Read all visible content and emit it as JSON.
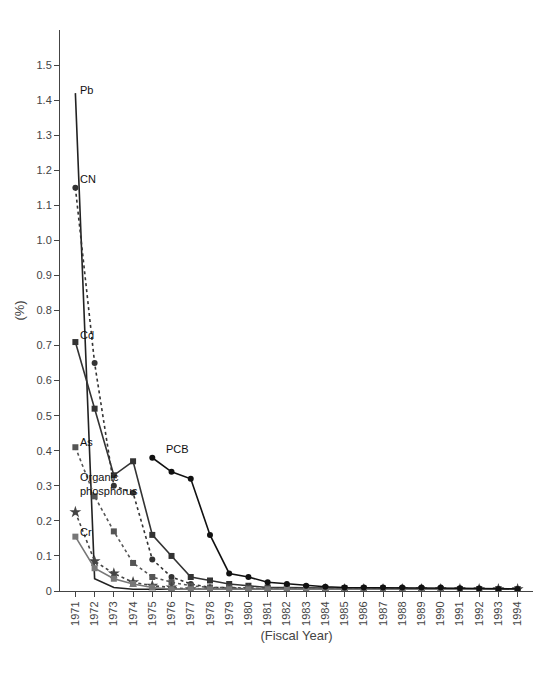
{
  "chart_data": {
    "type": "line",
    "x": [
      1971,
      1972,
      1973,
      1974,
      1975,
      1976,
      1977,
      1978,
      1979,
      1980,
      1981,
      1982,
      1983,
      1984,
      1985,
      1986,
      1987,
      1988,
      1989,
      1990,
      1991,
      1992,
      1993,
      1994
    ],
    "series": [
      {
        "name": "Pb",
        "color": "#222222",
        "line_style": "solid",
        "marker": "none",
        "values": [
          1.42,
          0.035,
          0.01,
          0.005,
          0.005,
          0.005,
          0.005,
          0.005,
          0.005,
          0.005,
          0.005,
          0.005,
          0.005,
          0.005,
          0.005,
          0.005,
          0.005,
          0.005,
          0.005,
          0.005,
          0.005,
          0.005,
          0.005,
          0.005
        ]
      },
      {
        "name": "CN",
        "color": "#333333",
        "line_style": "dotted",
        "marker": "circle",
        "values": [
          1.15,
          0.65,
          0.3,
          0.28,
          0.09,
          0.04,
          0.02,
          0.01,
          0.01,
          0.005,
          0.005,
          0.005,
          0.005,
          0.005,
          0.005,
          0.005,
          0.005,
          0.005,
          0.005,
          0.005,
          0.005,
          0.005,
          0.005,
          0.005
        ]
      },
      {
        "name": "Cd",
        "color": "#333333",
        "line_style": "solid",
        "marker": "square",
        "values": [
          0.71,
          0.52,
          0.33,
          0.37,
          0.16,
          0.1,
          0.04,
          0.03,
          0.02,
          0.015,
          0.01,
          0.01,
          0.01,
          0.008,
          0.008,
          0.007,
          0.007,
          0.006,
          0.005,
          0.005,
          0.005,
          0.005,
          0.005,
          0.005
        ]
      },
      {
        "name": "As",
        "color": "#555555",
        "line_style": "dotted",
        "marker": "square",
        "values": [
          0.41,
          0.27,
          0.17,
          0.08,
          0.04,
          0.025,
          0.015,
          0.01,
          0.01,
          0.008,
          0.007,
          0.007,
          0.007,
          0.006,
          0.005,
          0.005,
          0.005,
          0.005,
          0.005,
          0.005,
          0.005,
          0.005,
          0.005,
          0.005
        ]
      },
      {
        "name": "Organic\nphosphorus",
        "color": "#444444",
        "line_style": "dotted",
        "marker": "star",
        "values": [
          0.225,
          0.085,
          0.05,
          0.025,
          0.015,
          0.01,
          0.005,
          0.005,
          0.005,
          0.005,
          0.005,
          0.005,
          0.005,
          0.005,
          0.005,
          0.005,
          0.005,
          0.005,
          0.005,
          0.005,
          0.005,
          0.005,
          0.005,
          0.005
        ]
      },
      {
        "name": "Cr",
        "color": "#777777",
        "line_style": "solid",
        "marker": "square",
        "values": [
          0.155,
          0.065,
          0.035,
          0.02,
          0.01,
          0.005,
          0.005,
          0.005,
          0.005,
          0.005,
          0.005,
          0.005,
          0.005,
          0.005,
          0.005,
          0.005,
          0.005,
          0.005,
          0.005,
          0.005,
          0.005,
          0.005,
          0.005,
          0.005
        ]
      },
      {
        "name": "PCB",
        "color": "#111111",
        "line_style": "solid",
        "marker": "circle",
        "values": [
          null,
          null,
          null,
          null,
          0.38,
          0.34,
          0.32,
          0.16,
          0.05,
          0.04,
          0.025,
          0.02,
          0.015,
          0.012,
          0.01,
          0.01,
          0.01,
          0.01,
          0.01,
          0.01,
          0.008,
          0.007,
          0.006,
          0.006
        ]
      }
    ],
    "annotations": [
      {
        "text": "Pb",
        "x": 1971.15,
        "y": 1.43
      },
      {
        "text": "CN",
        "x": 1971.15,
        "y": 1.175
      },
      {
        "text": "Cd",
        "x": 1971.15,
        "y": 0.73
      },
      {
        "text": "As",
        "x": 1971.15,
        "y": 0.425
      },
      {
        "text": "Organic\nphosphorus",
        "x": 1971.15,
        "y": 0.305
      },
      {
        "text": "Cr",
        "x": 1971.15,
        "y": 0.168
      },
      {
        "text": "PCB",
        "x": 1975.6,
        "y": 0.405
      }
    ],
    "x_label": "(Fiscal Year)",
    "y_label": "(%)",
    "xlim": [
      1970.2,
      1994.8
    ],
    "xticks": [
      1971,
      1972,
      1973,
      1974,
      1975,
      1976,
      1977,
      1978,
      1979,
      1980,
      1981,
      1982,
      1983,
      1984,
      1985,
      1986,
      1987,
      1988,
      1989,
      1990,
      1991,
      1992,
      1993,
      1994
    ],
    "ylim": [
      0,
      1.6
    ],
    "yticks": [
      0,
      0.1,
      0.2,
      0.3,
      0.4,
      0.5,
      0.6,
      0.7,
      0.8,
      0.9,
      {
        "value": 1,
        "label": "1.0"
      },
      1.1,
      1.2,
      1.3,
      1.4,
      1.5
    ],
    "grid": false
  }
}
